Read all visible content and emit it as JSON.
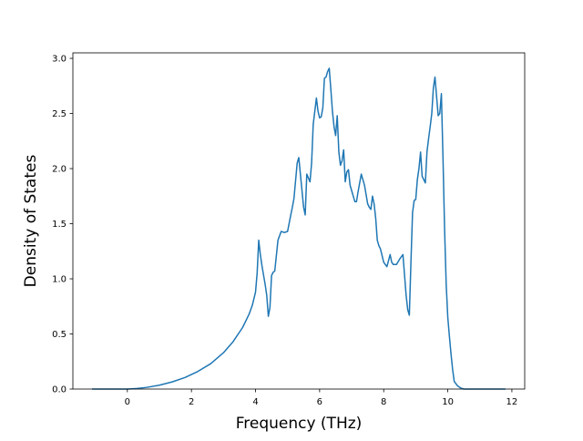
{
  "chart_data": {
    "type": "line",
    "title": "",
    "xlabel": "Frequency (THz)",
    "ylabel": "Density of States",
    "xlim": [
      -1.7,
      12.4
    ],
    "ylim": [
      0,
      3.05
    ],
    "x_ticks": [
      0,
      2,
      4,
      6,
      8,
      10,
      12
    ],
    "y_ticks": [
      0.0,
      0.5,
      1.0,
      1.5,
      2.0,
      2.5,
      3.0
    ],
    "x_tick_labels": [
      "0",
      "2",
      "4",
      "6",
      "8",
      "10",
      "12"
    ],
    "y_tick_labels": [
      "0.0",
      "0.5",
      "1.0",
      "1.5",
      "2.0",
      "2.5",
      "3.0"
    ],
    "grid": false,
    "series": [
      {
        "color": "#1f77b4",
        "x": [
          -1.1,
          -0.5,
          0.0,
          0.3,
          0.6,
          1.0,
          1.4,
          1.8,
          2.2,
          2.6,
          3.0,
          3.3,
          3.6,
          3.8,
          3.9,
          4.0,
          4.05,
          4.1,
          4.15,
          4.2,
          4.3,
          4.35,
          4.4,
          4.45,
          4.5,
          4.55,
          4.6,
          4.7,
          4.8,
          4.9,
          5.0,
          5.1,
          5.15,
          5.2,
          5.3,
          5.35,
          5.4,
          5.5,
          5.55,
          5.6,
          5.7,
          5.75,
          5.8,
          5.9,
          5.95,
          6.0,
          6.05,
          6.1,
          6.15,
          6.2,
          6.25,
          6.3,
          6.35,
          6.4,
          6.45,
          6.5,
          6.55,
          6.6,
          6.65,
          6.7,
          6.75,
          6.8,
          6.85,
          6.9,
          6.95,
          7.0,
          7.05,
          7.1,
          7.15,
          7.2,
          7.3,
          7.35,
          7.4,
          7.5,
          7.55,
          7.6,
          7.65,
          7.7,
          7.75,
          7.8,
          7.85,
          7.9,
          8.0,
          8.1,
          8.2,
          8.25,
          8.3,
          8.4,
          8.5,
          8.6,
          8.7,
          8.75,
          8.8,
          8.85,
          8.9,
          8.95,
          9.0,
          9.05,
          9.1,
          9.15,
          9.2,
          9.3,
          9.35,
          9.4,
          9.45,
          9.5,
          9.55,
          9.6,
          9.7,
          9.75,
          9.8,
          9.85,
          9.9,
          9.95,
          10.0,
          10.05,
          10.1,
          10.15,
          10.2,
          10.3,
          10.4,
          10.5,
          10.55,
          10.6,
          10.7,
          11.0,
          11.5,
          11.8
        ],
        "y": [
          0.0,
          0.0,
          0.0,
          0.005,
          0.015,
          0.035,
          0.065,
          0.105,
          0.16,
          0.23,
          0.33,
          0.43,
          0.56,
          0.68,
          0.76,
          0.88,
          1.05,
          1.35,
          1.22,
          1.12,
          0.95,
          0.85,
          0.66,
          0.74,
          1.03,
          1.06,
          1.07,
          1.35,
          1.43,
          1.42,
          1.43,
          1.58,
          1.65,
          1.73,
          2.05,
          2.1,
          1.95,
          1.65,
          1.58,
          1.95,
          1.88,
          2.05,
          2.4,
          2.64,
          2.52,
          2.46,
          2.47,
          2.55,
          2.82,
          2.83,
          2.88,
          2.91,
          2.72,
          2.52,
          2.38,
          2.3,
          2.48,
          2.15,
          2.03,
          2.07,
          2.17,
          1.88,
          1.97,
          1.99,
          1.85,
          1.8,
          1.75,
          1.7,
          1.7,
          1.79,
          1.95,
          1.9,
          1.85,
          1.68,
          1.65,
          1.63,
          1.75,
          1.68,
          1.55,
          1.35,
          1.3,
          1.27,
          1.15,
          1.11,
          1.22,
          1.15,
          1.13,
          1.13,
          1.18,
          1.22,
          0.85,
          0.72,
          0.67,
          1.15,
          1.6,
          1.71,
          1.72,
          1.9,
          2.0,
          2.15,
          1.93,
          1.87,
          2.15,
          2.27,
          2.38,
          2.5,
          2.73,
          2.83,
          2.48,
          2.5,
          2.68,
          2.1,
          1.45,
          0.95,
          0.65,
          0.48,
          0.32,
          0.18,
          0.07,
          0.03,
          0.01,
          0.0,
          0.0,
          0.0,
          0.0,
          0.0,
          0.0,
          0.0
        ]
      }
    ]
  }
}
